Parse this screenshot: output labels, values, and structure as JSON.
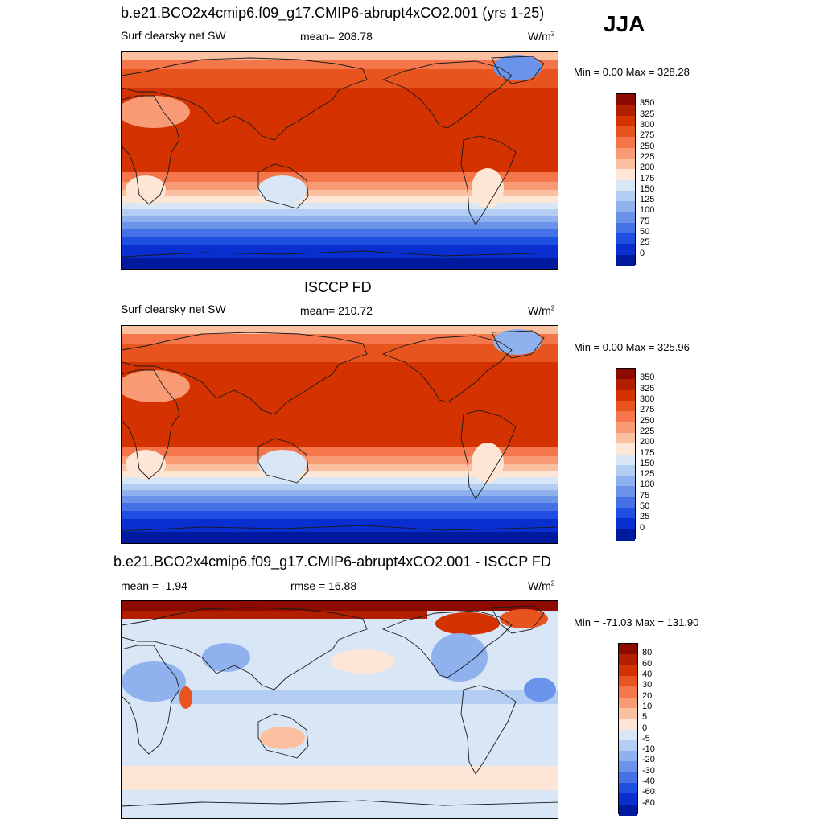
{
  "season": "JJA",
  "panels": [
    {
      "title": "b.e21.BCO2x4cmip6.f09_g17.CMIP6-abrupt4xCO2.001 (yrs 1-25)",
      "left_label": "Surf clearsky net SW",
      "center_label": "mean= 208.78",
      "units": "W/m",
      "units_sup": "2",
      "minmax": "Min =   0.00 Max = 328.28"
    },
    {
      "title": "ISCCP FD",
      "left_label": "Surf clearsky net SW",
      "center_label": "mean= 210.72",
      "units": "W/m",
      "units_sup": "2",
      "minmax": "Min =   0.00 Max = 325.96"
    },
    {
      "title": "b.e21.BCO2x4cmip6.f09_g17.CMIP6-abrupt4xCO2.001 - ISCCP FD",
      "left_label": "mean =  -1.94",
      "center_label": "rmse =  16.88",
      "units": "W/m",
      "units_sup": "2",
      "minmax": "Min = -71.03 Max = 131.90"
    }
  ],
  "colorbars": {
    "absolute": {
      "labels": [
        "350",
        "325",
        "300",
        "275",
        "250",
        "225",
        "200",
        "175",
        "150",
        "125",
        "100",
        "75",
        "50",
        "25",
        "0"
      ],
      "colors": [
        "#8c0a00",
        "#b21e00",
        "#d43200",
        "#e8541e",
        "#f4764a",
        "#f89a74",
        "#fbc0a0",
        "#fde6d6",
        "#d8e6f6",
        "#b4cdf2",
        "#8fb2ef",
        "#6b93ea",
        "#4472e6",
        "#1f4fe0",
        "#0a2fd0",
        "#001a9e"
      ]
    },
    "difference": {
      "labels": [
        "80",
        "60",
        "40",
        "30",
        "20",
        "10",
        "5",
        "0",
        "-5",
        "-10",
        "-20",
        "-30",
        "-40",
        "-60",
        "-80"
      ],
      "colors": [
        "#8c0a00",
        "#b21e00",
        "#d43200",
        "#e8541e",
        "#f4764a",
        "#f89a74",
        "#fbc0a0",
        "#fde6d6",
        "#d8e6f6",
        "#b4cdf2",
        "#8fb2ef",
        "#6b93ea",
        "#4472e6",
        "#1f4fe0",
        "#0a2fd0",
        "#001a9e"
      ]
    }
  },
  "chart_data": [
    {
      "type": "heatmap",
      "title": "b.e21.BCO2x4cmip6.f09_g17.CMIP6-abrupt4xCO2.001 (yrs 1-25)",
      "subtitle": "Surf clearsky net SW",
      "season": "JJA",
      "units": "W/m2",
      "mean": 208.78,
      "min": 0.0,
      "max": 328.28,
      "colorbar_levels": [
        0,
        25,
        50,
        75,
        100,
        125,
        150,
        175,
        200,
        225,
        250,
        275,
        300,
        325,
        350
      ]
    },
    {
      "type": "heatmap",
      "title": "ISCCP FD",
      "subtitle": "Surf clearsky net SW",
      "units": "W/m2",
      "mean": 210.72,
      "min": 0.0,
      "max": 325.96,
      "colorbar_levels": [
        0,
        25,
        50,
        75,
        100,
        125,
        150,
        175,
        200,
        225,
        250,
        275,
        300,
        325,
        350
      ]
    },
    {
      "type": "heatmap",
      "title": "b.e21.BCO2x4cmip6.f09_g17.CMIP6-abrupt4xCO2.001 - ISCCP FD",
      "units": "W/m2",
      "mean": -1.94,
      "rmse": 16.88,
      "min": -71.03,
      "max": 131.9,
      "colorbar_levels": [
        -80,
        -60,
        -40,
        -30,
        -20,
        -10,
        -5,
        0,
        5,
        10,
        20,
        30,
        40,
        60,
        80
      ]
    }
  ]
}
